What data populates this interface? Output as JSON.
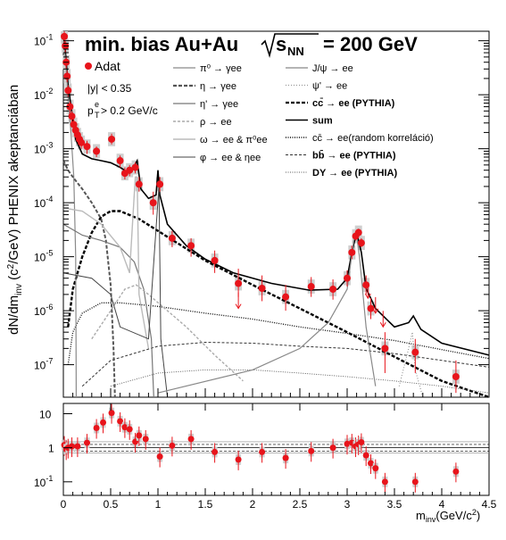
{
  "chart_data": {
    "type": "scatter",
    "title": "min. bias Au+Au",
    "title_energy_prefix": "s",
    "title_energy_sub": "NN",
    "title_energy_value": "= 200 GeV",
    "ylabel_parts": [
      "dN/dm",
      "inv",
      " (c",
      "2",
      "/GeV) PHENIX akeptanciában"
    ],
    "xlabel_parts": [
      "m",
      "inv",
      "(GeV/c",
      "2",
      ")"
    ],
    "cuts": [
      "|y| < 0.35",
      "p",
      "e",
      "T",
      " > 0.2 GeV/c"
    ],
    "data_legend": "Adat",
    "x_range": [
      0,
      4.5
    ],
    "y_range": [
      2.5e-08,
      0.15
    ],
    "y_scale": "log",
    "ratio_y_range": [
      0.04,
      20
    ],
    "x_ticks": [
      "0",
      "0.5",
      "1",
      "1.5",
      "2",
      "2.5",
      "3",
      "3.5",
      "4",
      "4.5"
    ],
    "y_ticks": [
      {
        "base": "10",
        "exp": "-1",
        "v": 0.1
      },
      {
        "base": "10",
        "exp": "-2",
        "v": 0.01
      },
      {
        "base": "10",
        "exp": "-3",
        "v": 0.001
      },
      {
        "base": "10",
        "exp": "-4",
        "v": 0.0001
      },
      {
        "base": "10",
        "exp": "-5",
        "v": 1e-05
      },
      {
        "base": "10",
        "exp": "-6",
        "v": 1e-06
      },
      {
        "base": "10",
        "exp": "-7",
        "v": 1e-07
      }
    ],
    "ratio_ticks": [
      {
        "label": "10",
        "v": 10
      },
      {
        "label": "1",
        "v": 1
      },
      {
        "base": "10",
        "exp": "-1",
        "v": 0.1
      }
    ],
    "legend_col1": [
      {
        "label": "π⁰ → γee",
        "color": "#8a8a8a",
        "dash": "",
        "width": 1.2
      },
      {
        "label": "η → γee",
        "color": "#555555",
        "dash": "4,2",
        "width": 2.2
      },
      {
        "label": "η' → γee",
        "color": "#777777",
        "dash": "",
        "width": 1.2
      },
      {
        "label": "ρ → ee",
        "color": "#aaaaaa",
        "dash": "3,2",
        "width": 1.4
      },
      {
        "label": "ω → ee & π⁰ee",
        "color": "#bbbbbb",
        "dash": "",
        "width": 1.4
      },
      {
        "label": "φ → ee & ηee",
        "color": "#444444",
        "dash": "",
        "width": 1.0
      }
    ],
    "legend_col2": [
      {
        "label": "J/ψ → ee",
        "color": "#888888",
        "dash": "",
        "width": 1.2
      },
      {
        "label": "ψ' → ee",
        "color": "#999999",
        "dash": "1,2",
        "width": 1.2
      },
      {
        "label": "cc̄ → ee (PYTHIA)",
        "color": "#000000",
        "dash": "4,2",
        "width": 2.2,
        "bold": true
      },
      {
        "label": "sum",
        "color": "#000000",
        "dash": "",
        "width": 1.6,
        "bold": true
      },
      {
        "label": "cc̄ → ee(random korreláció)",
        "color": "#000000",
        "dash": "1,1.5",
        "width": 1.6
      },
      {
        "label": "bb̄ → ee (PYTHIA)",
        "color": "#333333",
        "dash": "3,2",
        "width": 1.0,
        "bold": true
      },
      {
        "label": "DY → ee (PYTHIA)",
        "color": "#555555",
        "dash": "1,1.5",
        "width": 1.0,
        "bold": true
      }
    ],
    "data_points": [
      {
        "x": 0.01,
        "y": 0.12,
        "elo": 0.09,
        "ehi": 0.15
      },
      {
        "x": 0.02,
        "y": 0.08,
        "elo": 0.06,
        "ehi": 0.1
      },
      {
        "x": 0.03,
        "y": 0.04,
        "elo": 0.03,
        "ehi": 0.05
      },
      {
        "x": 0.04,
        "y": 0.022,
        "elo": 0.017,
        "ehi": 0.028
      },
      {
        "x": 0.05,
        "y": 0.012,
        "elo": 0.009,
        "ehi": 0.015
      },
      {
        "x": 0.07,
        "y": 0.006,
        "elo": 0.0045,
        "ehi": 0.0075
      },
      {
        "x": 0.09,
        "y": 0.004,
        "elo": 0.003,
        "ehi": 0.005
      },
      {
        "x": 0.11,
        "y": 0.0028,
        "elo": 0.0021,
        "ehi": 0.0035
      },
      {
        "x": 0.13,
        "y": 0.0022,
        "elo": 0.0017,
        "ehi": 0.0027
      },
      {
        "x": 0.15,
        "y": 0.0018,
        "elo": 0.0014,
        "ehi": 0.0022
      },
      {
        "x": 0.17,
        "y": 0.0015,
        "elo": 0.0012,
        "ehi": 0.0019
      },
      {
        "x": 0.19,
        "y": 0.0013,
        "elo": 0.001,
        "ehi": 0.0016
      },
      {
        "x": 0.25,
        "y": 0.0011,
        "elo": 0.0008,
        "ehi": 0.0014
      },
      {
        "x": 0.35,
        "y": 0.0009,
        "elo": 0.0007,
        "ehi": 0.0011
      },
      {
        "x": 0.51,
        "y": 0.0015,
        "elo": 0.0012,
        "ehi": 0.0019
      },
      {
        "x": 0.6,
        "y": 0.0006,
        "elo": 0.00045,
        "ehi": 0.00075
      },
      {
        "x": 0.65,
        "y": 0.00035,
        "elo": 0.00027,
        "ehi": 0.00045
      },
      {
        "x": 0.7,
        "y": 0.0004,
        "elo": 0.00031,
        "ehi": 0.0005
      },
      {
        "x": 0.76,
        "y": 0.00045,
        "elo": 0.00035,
        "ehi": 0.00056
      },
      {
        "x": 0.8,
        "y": 0.00022,
        "elo": 0.00016,
        "ehi": 0.0003
      },
      {
        "x": 0.95,
        "y": 0.0001,
        "elo": 6e-05,
        "ehi": 0.00016
      },
      {
        "x": 1.02,
        "y": 0.00022,
        "elo": 0.00016,
        "ehi": 0.0003
      },
      {
        "x": 1.15,
        "y": 2.2e-05,
        "elo": 1.5e-05,
        "ehi": 3e-05
      },
      {
        "x": 1.35,
        "y": 1.6e-05,
        "elo": 1e-05,
        "ehi": 2.2e-05
      },
      {
        "x": 1.6,
        "y": 8.5e-06,
        "elo": 5e-06,
        "ehi": 1.3e-05
      },
      {
        "x": 1.85,
        "y": 3.2e-06,
        "elo": 1.8e-06,
        "ehi": 6e-06
      },
      {
        "x": 2.1,
        "y": 2.6e-06,
        "elo": 1.5e-06,
        "ehi": 4.5e-06
      },
      {
        "x": 2.35,
        "y": 1.8e-06,
        "elo": 1e-06,
        "ehi": 3e-06
      },
      {
        "x": 2.62,
        "y": 2.8e-06,
        "elo": 1.8e-06,
        "ehi": 4.2e-06
      },
      {
        "x": 2.85,
        "y": 2.5e-06,
        "elo": 1.6e-06,
        "ehi": 3.8e-06
      },
      {
        "x": 3.0,
        "y": 4e-06,
        "elo": 2.8e-06,
        "ehi": 5.6e-06
      },
      {
        "x": 3.05,
        "y": 1.2e-05,
        "elo": 9e-06,
        "ehi": 1.6e-05
      },
      {
        "x": 3.09,
        "y": 2.4e-05,
        "elo": 2e-05,
        "ehi": 2.9e-05
      },
      {
        "x": 3.12,
        "y": 2.8e-05,
        "elo": 2.4e-05,
        "ehi": 3.3e-05
      },
      {
        "x": 3.15,
        "y": 1.8e-05,
        "elo": 1.5e-05,
        "ehi": 2.2e-05
      },
      {
        "x": 3.2,
        "y": 3e-06,
        "elo": 2e-06,
        "ehi": 4.5e-06
      },
      {
        "x": 3.25,
        "y": 1.1e-06,
        "elo": 7e-07,
        "ehi": 1.7e-06
      },
      {
        "x": 3.4,
        "y": 2e-07,
        "elo": 7e-08,
        "ehi": 4e-07
      },
      {
        "x": 3.72,
        "y": 1.7e-07,
        "elo": 7e-08,
        "ehi": 3e-07
      },
      {
        "x": 4.15,
        "y": 6e-08,
        "elo": 3e-08,
        "ehi": 1.2e-07
      }
    ],
    "arrow_points": [
      {
        "x": 1.85,
        "y": 1.1e-06
      },
      {
        "x": 3.22,
        "y": 1.7e-06
      },
      {
        "x": 3.3,
        "y": 9e-07
      },
      {
        "x": 3.38,
        "y": 5e-07
      }
    ],
    "ratio_points": [
      {
        "x": 0.01,
        "y": 1.2
      },
      {
        "x": 0.03,
        "y": 0.9
      },
      {
        "x": 0.05,
        "y": 1.0
      },
      {
        "x": 0.09,
        "y": 1.1
      },
      {
        "x": 0.15,
        "y": 1.1
      },
      {
        "x": 0.25,
        "y": 1.4
      },
      {
        "x": 0.35,
        "y": 3.8
      },
      {
        "x": 0.42,
        "y": 5.5
      },
      {
        "x": 0.51,
        "y": 10.5
      },
      {
        "x": 0.6,
        "y": 6.0
      },
      {
        "x": 0.65,
        "y": 4.0
      },
      {
        "x": 0.7,
        "y": 3.5
      },
      {
        "x": 0.76,
        "y": 1.5
      },
      {
        "x": 0.8,
        "y": 2.3
      },
      {
        "x": 0.87,
        "y": 1.8
      },
      {
        "x": 1.02,
        "y": 0.55
      },
      {
        "x": 1.15,
        "y": 1.15
      },
      {
        "x": 1.35,
        "y": 1.8
      },
      {
        "x": 1.6,
        "y": 0.75
      },
      {
        "x": 1.85,
        "y": 0.45
      },
      {
        "x": 2.1,
        "y": 0.75
      },
      {
        "x": 2.35,
        "y": 0.5
      },
      {
        "x": 2.62,
        "y": 0.8
      },
      {
        "x": 2.85,
        "y": 1.0
      },
      {
        "x": 3.0,
        "y": 1.3
      },
      {
        "x": 3.05,
        "y": 1.4
      },
      {
        "x": 3.09,
        "y": 1.1
      },
      {
        "x": 3.12,
        "y": 1.25
      },
      {
        "x": 3.15,
        "y": 1.45
      },
      {
        "x": 3.2,
        "y": 0.6
      },
      {
        "x": 3.25,
        "y": 0.35
      },
      {
        "x": 3.3,
        "y": 0.25
      },
      {
        "x": 3.4,
        "y": 0.1
      },
      {
        "x": 3.72,
        "y": 0.1
      },
      {
        "x": 4.15,
        "y": 0.2
      }
    ],
    "curves": {
      "sum": [
        [
          0.0,
          0.12
        ],
        [
          0.02,
          0.07
        ],
        [
          0.05,
          0.015
        ],
        [
          0.1,
          0.0035
        ],
        [
          0.13,
          0.0015
        ],
        [
          0.2,
          0.0008
        ],
        [
          0.3,
          0.00065
        ],
        [
          0.4,
          0.0006
        ],
        [
          0.5,
          0.00055
        ],
        [
          0.55,
          0.0005
        ],
        [
          0.6,
          0.00045
        ],
        [
          0.7,
          0.00035
        ],
        [
          0.74,
          0.00045
        ],
        [
          0.78,
          0.0006
        ],
        [
          0.82,
          0.00018
        ],
        [
          0.9,
          0.00012
        ],
        [
          0.98,
          0.00014
        ],
        [
          1.0,
          0.0004
        ],
        [
          1.02,
          0.00014
        ],
        [
          1.1,
          4e-05
        ],
        [
          1.3,
          1.6e-05
        ],
        [
          1.5,
          9e-06
        ],
        [
          1.8,
          5e-06
        ],
        [
          2.2,
          3.2e-06
        ],
        [
          2.6,
          2.4e-06
        ],
        [
          2.9,
          2.5e-06
        ],
        [
          3.0,
          4e-06
        ],
        [
          3.05,
          1.2e-05
        ],
        [
          3.1,
          2.8e-05
        ],
        [
          3.15,
          1.2e-05
        ],
        [
          3.2,
          2.6e-06
        ],
        [
          3.3,
          1.1e-06
        ],
        [
          3.5,
          5e-07
        ],
        [
          3.65,
          6e-07
        ],
        [
          3.7,
          8e-07
        ],
        [
          3.78,
          4.5e-07
        ],
        [
          4.0,
          2.5e-07
        ],
        [
          4.5,
          1.5e-07
        ]
      ],
      "cc_pythia": [
        [
          0.05,
          5e-07
        ],
        [
          0.1,
          2.5e-06
        ],
        [
          0.2,
          1e-05
        ],
        [
          0.3,
          2.8e-05
        ],
        [
          0.4,
          5.5e-05
        ],
        [
          0.5,
          7e-05
        ],
        [
          0.6,
          7e-05
        ],
        [
          0.8,
          5e-05
        ],
        [
          1.0,
          3e-05
        ],
        [
          1.5,
          8.5e-06
        ],
        [
          2.0,
          3e-06
        ],
        [
          2.5,
          1.1e-06
        ],
        [
          3.0,
          4e-07
        ],
        [
          3.5,
          1.4e-07
        ],
        [
          4.0,
          5e-08
        ],
        [
          4.5,
          2.5e-08
        ]
      ],
      "cc_random": [
        [
          0.05,
          1e-07
        ],
        [
          0.1,
          4e-07
        ],
        [
          0.2,
          9e-07
        ],
        [
          0.4,
          1.4e-06
        ],
        [
          0.6,
          1.4e-06
        ],
        [
          0.8,
          1.3e-06
        ],
        [
          1.0,
          1.2e-06
        ],
        [
          1.5,
          9e-07
        ],
        [
          2.0,
          7e-07
        ],
        [
          2.5,
          5e-07
        ],
        [
          3.0,
          3.8e-07
        ],
        [
          3.5,
          2.8e-07
        ],
        [
          4.0,
          1.9e-07
        ],
        [
          4.5,
          1.3e-07
        ]
      ],
      "bb_pythia": [
        [
          0.2,
          4e-08
        ],
        [
          0.5,
          1.2e-07
        ],
        [
          1.0,
          2.2e-07
        ],
        [
          1.5,
          2.6e-07
        ],
        [
          2.0,
          2.5e-07
        ],
        [
          2.5,
          2.2e-07
        ],
        [
          3.0,
          2e-07
        ],
        [
          3.5,
          1.6e-07
        ],
        [
          4.0,
          1.2e-07
        ],
        [
          4.5,
          9e-08
        ]
      ],
      "dy": [
        [
          0.5,
          4e-08
        ],
        [
          1.0,
          7e-08
        ],
        [
          1.5,
          8e-08
        ],
        [
          2.0,
          8e-08
        ],
        [
          2.5,
          7e-08
        ],
        [
          3.0,
          6e-08
        ],
        [
          3.5,
          5e-08
        ],
        [
          4.0,
          4e-08
        ],
        [
          4.5,
          3e-08
        ]
      ],
      "pi0": [
        [
          0.0,
          0.1
        ],
        [
          0.02,
          0.05
        ],
        [
          0.05,
          0.01
        ],
        [
          0.08,
          0.002
        ],
        [
          0.11,
          0.0003
        ],
        [
          0.13,
          1e-05
        ],
        [
          0.135,
          1e-07
        ],
        [
          0.136,
          2e-08
        ]
      ],
      "eta": [
        [
          0.0,
          0.0006
        ],
        [
          0.05,
          0.0004
        ],
        [
          0.1,
          0.0003
        ],
        [
          0.2,
          0.00018
        ],
        [
          0.3,
          0.0001
        ],
        [
          0.4,
          5e-05
        ],
        [
          0.45,
          2e-05
        ],
        [
          0.5,
          3e-06
        ],
        [
          0.53,
          2e-07
        ],
        [
          0.545,
          2e-08
        ]
      ],
      "etap": [
        [
          0.0,
          4e-05
        ],
        [
          0.2,
          2.5e-05
        ],
        [
          0.4,
          2e-05
        ],
        [
          0.6,
          1.5e-05
        ],
        [
          0.75,
          8e-06
        ],
        [
          0.85,
          2.5e-06
        ],
        [
          0.93,
          3e-07
        ],
        [
          0.956,
          2e-08
        ]
      ],
      "rho": [
        [
          0.3,
          3e-07
        ],
        [
          0.5,
          1e-06
        ],
        [
          0.65,
          2.5e-06
        ],
        [
          0.77,
          3e-06
        ],
        [
          0.9,
          2e-06
        ],
        [
          1.1,
          1e-06
        ],
        [
          1.3,
          5e-07
        ],
        [
          1.6,
          1.5e-07
        ],
        [
          1.9,
          5e-08
        ]
      ],
      "omega": [
        [
          0.0,
          8e-05
        ],
        [
          0.2,
          7e-05
        ],
        [
          0.4,
          4e-05
        ],
        [
          0.6,
          1.5e-05
        ],
        [
          0.7,
          5e-06
        ],
        [
          0.76,
          0.0003
        ],
        [
          0.78,
          0.0003
        ],
        [
          0.8,
          2e-06
        ],
        [
          0.9,
          2e-07
        ]
      ],
      "phi": [
        [
          0.0,
          5e-06
        ],
        [
          0.3,
          4e-06
        ],
        [
          0.5,
          2e-06
        ],
        [
          0.6,
          5e-07
        ],
        [
          0.9,
          3e-07
        ],
        [
          1.01,
          0.0002
        ],
        [
          1.03,
          3e-07
        ],
        [
          1.1,
          2e-08
        ]
      ],
      "jpsi": [
        [
          1.0,
          3e-08
        ],
        [
          2.0,
          8e-08
        ],
        [
          2.5,
          2e-07
        ],
        [
          2.8,
          6e-07
        ],
        [
          3.0,
          2.5e-06
        ],
        [
          3.07,
          2e-05
        ],
        [
          3.1,
          2.5e-05
        ],
        [
          3.13,
          1e-05
        ],
        [
          3.2,
          5e-07
        ],
        [
          3.3,
          4e-08
        ]
      ],
      "psip": [
        [
          3.55,
          4e-08
        ],
        [
          3.65,
          2e-07
        ],
        [
          3.69,
          4e-07
        ],
        [
          3.72,
          8e-08
        ],
        [
          3.8,
          2e-08
        ]
      ]
    }
  }
}
